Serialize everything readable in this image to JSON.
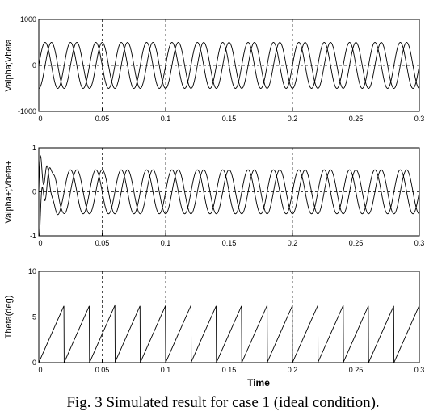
{
  "caption": "Fig. 3 Simulated result for case 1 (ideal condition).",
  "xlabel": "Time",
  "chart_data": [
    {
      "type": "line",
      "ylabel": "Valpha;Vbeta",
      "xlim": [
        0,
        0.3
      ],
      "ylim": [
        -1000,
        1000
      ],
      "xticks": [
        "0",
        "0.05",
        "0.1",
        "0.15",
        "0.2",
        "0.25",
        "0.3"
      ],
      "yticks": [
        "1000",
        "0",
        "-1000"
      ],
      "grid": true,
      "series": [
        {
          "signal": "sine",
          "amplitude": 500,
          "frequency_hz": 50,
          "phase_deg": 0
        },
        {
          "signal": "sine",
          "amplitude": 500,
          "frequency_hz": 50,
          "phase_deg": -90
        }
      ]
    },
    {
      "type": "line",
      "ylabel": "Valpha+;Vbeta+",
      "xlim": [
        0,
        0.3
      ],
      "ylim": [
        -1,
        1
      ],
      "xticks": [
        "0",
        "0.05",
        "0.1",
        "0.15",
        "0.2",
        "0.25",
        "0.3"
      ],
      "yticks": [
        "1",
        "0",
        "-1"
      ],
      "grid": true,
      "series": [
        {
          "signal": "sine",
          "amplitude": 0.5,
          "frequency_hz": 50,
          "phase_deg": 0,
          "initial_transient": true
        },
        {
          "signal": "sine",
          "amplitude": 0.5,
          "frequency_hz": 50,
          "phase_deg": -90,
          "initial_transient": true
        }
      ]
    },
    {
      "type": "line",
      "ylabel": "Theta(deg)",
      "xlim": [
        0,
        0.3
      ],
      "ylim": [
        0,
        10
      ],
      "xticks": [
        "0",
        "0.05",
        "0.1",
        "0.15",
        "0.2",
        "0.25",
        "0.3"
      ],
      "yticks": [
        "10",
        "5",
        "0"
      ],
      "grid": true,
      "series": [
        {
          "signal": "sawtooth",
          "min": 0,
          "max": 6.28,
          "period_s": 0.02
        }
      ]
    }
  ]
}
